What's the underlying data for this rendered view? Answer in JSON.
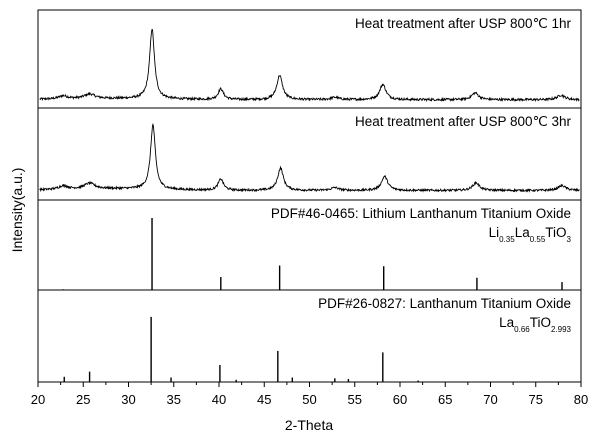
{
  "chart_data": {
    "type": "line",
    "xlabel": "2-Theta",
    "ylabel": "Intensity(a.u.)",
    "xlim": [
      20,
      80
    ],
    "xticks": [
      "20",
      "25",
      "30",
      "35",
      "40",
      "45",
      "50",
      "55",
      "60",
      "65",
      "70",
      "75",
      "80"
    ],
    "grid": false,
    "panels": [
      {
        "kind": "pattern",
        "label": "Heat treatment after USP 800℃ 1hr",
        "background": 0.03,
        "peaks": [
          {
            "x": 22.8,
            "h": 0.04,
            "w": 0.6
          },
          {
            "x": 25.7,
            "h": 0.06,
            "w": 0.7
          },
          {
            "x": 32.6,
            "h": 0.92,
            "w": 0.32
          },
          {
            "x": 40.2,
            "h": 0.14,
            "w": 0.35
          },
          {
            "x": 46.7,
            "h": 0.32,
            "w": 0.38
          },
          {
            "x": 52.8,
            "h": 0.03,
            "w": 0.5
          },
          {
            "x": 58.1,
            "h": 0.2,
            "w": 0.42
          },
          {
            "x": 68.3,
            "h": 0.09,
            "w": 0.45
          },
          {
            "x": 77.8,
            "h": 0.06,
            "w": 0.5
          }
        ]
      },
      {
        "kind": "pattern",
        "label": "Heat treatment after USP 800℃ 3hr",
        "background": 0.05,
        "peaks": [
          {
            "x": 22.8,
            "h": 0.05,
            "w": 0.6
          },
          {
            "x": 25.7,
            "h": 0.08,
            "w": 0.7
          },
          {
            "x": 32.7,
            "h": 0.92,
            "w": 0.32
          },
          {
            "x": 40.2,
            "h": 0.16,
            "w": 0.35
          },
          {
            "x": 46.8,
            "h": 0.32,
            "w": 0.38
          },
          {
            "x": 52.8,
            "h": 0.04,
            "w": 0.5
          },
          {
            "x": 58.3,
            "h": 0.2,
            "w": 0.42
          },
          {
            "x": 68.4,
            "h": 0.11,
            "w": 0.45
          },
          {
            "x": 77.9,
            "h": 0.07,
            "w": 0.5
          }
        ]
      },
      {
        "kind": "reference",
        "label": "PDF#46-0465: Lithium Lanthanum Titanium Oxide",
        "formula": [
          {
            "t": "Li",
            "sub": false
          },
          {
            "t": "0.35",
            "sub": true
          },
          {
            "t": "La",
            "sub": false
          },
          {
            "t": "0.55",
            "sub": true
          },
          {
            "t": "TiO",
            "sub": false
          },
          {
            "t": "3",
            "sub": true
          }
        ],
        "lines": [
          {
            "x": 22.8,
            "h": 0.01
          },
          {
            "x": 32.6,
            "h": 1.0
          },
          {
            "x": 40.2,
            "h": 0.18
          },
          {
            "x": 46.7,
            "h": 0.34
          },
          {
            "x": 58.2,
            "h": 0.33
          },
          {
            "x": 68.5,
            "h": 0.17
          },
          {
            "x": 77.9,
            "h": 0.11
          }
        ]
      },
      {
        "kind": "reference",
        "label": "PDF#26-0827: Lanthanum Titanium Oxide",
        "formula": [
          {
            "t": "La",
            "sub": false
          },
          {
            "t": "0.66",
            "sub": true
          },
          {
            "t": "TiO",
            "sub": false
          },
          {
            "t": "2.993",
            "sub": true
          }
        ],
        "lines": [
          {
            "x": 22.9,
            "h": 0.07
          },
          {
            "x": 25.7,
            "h": 0.14
          },
          {
            "x": 32.5,
            "h": 0.88
          },
          {
            "x": 34.7,
            "h": 0.06
          },
          {
            "x": 40.1,
            "h": 0.23
          },
          {
            "x": 41.9,
            "h": 0.03
          },
          {
            "x": 46.5,
            "h": 0.42
          },
          {
            "x": 48.1,
            "h": 0.06
          },
          {
            "x": 52.8,
            "h": 0.05
          },
          {
            "x": 54.3,
            "h": 0.04
          },
          {
            "x": 58.1,
            "h": 0.4
          },
          {
            "x": 62.0,
            "h": 0.02
          }
        ]
      }
    ]
  }
}
